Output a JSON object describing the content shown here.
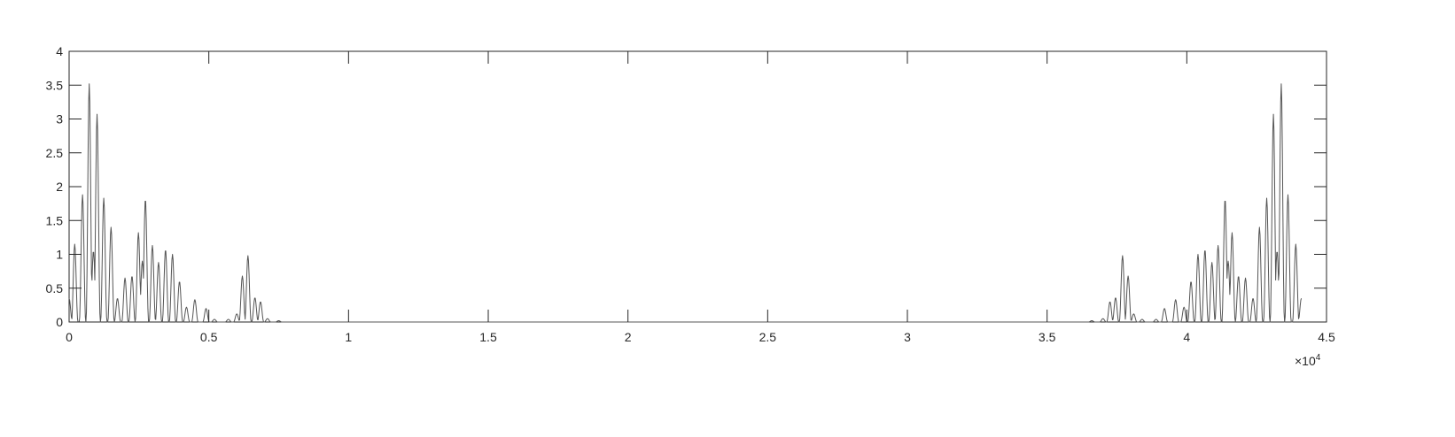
{
  "chart_data": {
    "type": "line",
    "title": "",
    "xlabel": "",
    "ylabel": "",
    "xlim": [
      0,
      45000
    ],
    "ylim": [
      0,
      4
    ],
    "x_ticks": [
      0,
      5000,
      10000,
      15000,
      20000,
      25000,
      30000,
      35000,
      40000,
      45000
    ],
    "x_tick_labels": [
      "0",
      "0.5",
      "1",
      "1.5",
      "2",
      "2.5",
      "3",
      "3.5",
      "4",
      "4.5"
    ],
    "x_exponent_base": "×10",
    "x_exponent_power": "4",
    "y_ticks": [
      0,
      0.5,
      1,
      1.5,
      2,
      2.5,
      3,
      3.5,
      4
    ],
    "y_tick_labels": [
      "0",
      "0.5",
      "1",
      "1.5",
      "2",
      "2.5",
      "3",
      "3.5",
      "4"
    ],
    "grid": false,
    "box": true,
    "line_color": "#555555",
    "axis_color": "#262626",
    "series": [
      {
        "peaks": [
          [
            0,
            0.35
          ],
          [
            200,
            1.15
          ],
          [
            480,
            1.88
          ],
          [
            720,
            3.52
          ],
          [
            870,
            1.05
          ],
          [
            1000,
            3.07
          ],
          [
            1240,
            1.83
          ],
          [
            1500,
            1.4
          ],
          [
            1730,
            0.35
          ],
          [
            2000,
            0.65
          ],
          [
            2250,
            0.68
          ],
          [
            2480,
            1.32
          ],
          [
            2620,
            0.9
          ],
          [
            2730,
            1.82
          ],
          [
            2980,
            1.13
          ],
          [
            3200,
            0.88
          ],
          [
            3450,
            1.07
          ],
          [
            3700,
            1.0
          ],
          [
            3950,
            0.6
          ],
          [
            4200,
            0.22
          ],
          [
            4500,
            0.33
          ],
          [
            4900,
            0.2
          ],
          [
            5200,
            0.04
          ],
          [
            5700,
            0.04
          ],
          [
            6000,
            0.12
          ],
          [
            6200,
            0.68
          ],
          [
            6400,
            0.98
          ],
          [
            6650,
            0.36
          ],
          [
            6850,
            0.3
          ],
          [
            7100,
            0.05
          ],
          [
            7500,
            0.02
          ]
        ]
      }
    ]
  }
}
